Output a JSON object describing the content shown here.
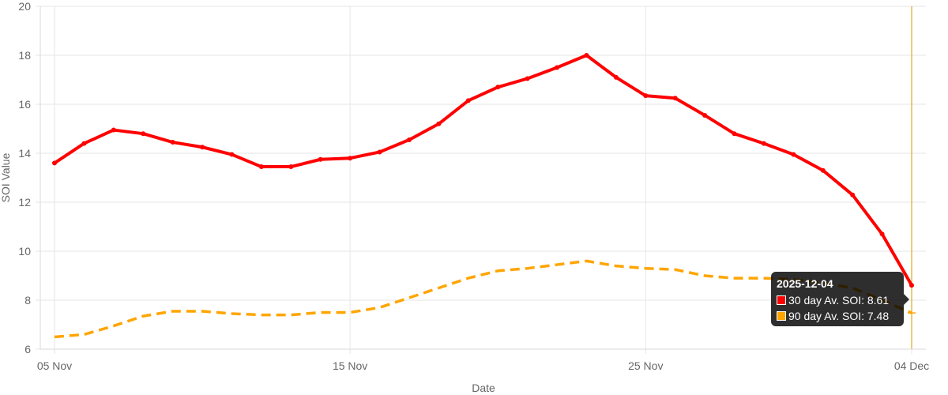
{
  "chart_data": {
    "type": "line",
    "xlabel": "Date",
    "ylabel": "SOI Value",
    "ylim": [
      6,
      20
    ],
    "yticks": [
      6,
      8,
      10,
      12,
      14,
      16,
      18,
      20
    ],
    "xticks": [
      {
        "label": "05 Nov",
        "index": 0
      },
      {
        "label": "15 Nov",
        "index": 10
      },
      {
        "label": "25 Nov",
        "index": 20
      },
      {
        "label": "04 Dec",
        "index": 29
      }
    ],
    "x": [
      "2025-11-05",
      "2025-11-06",
      "2025-11-07",
      "2025-11-08",
      "2025-11-09",
      "2025-11-10",
      "2025-11-11",
      "2025-11-12",
      "2025-11-13",
      "2025-11-14",
      "2025-11-15",
      "2025-11-16",
      "2025-11-17",
      "2025-11-18",
      "2025-11-19",
      "2025-11-20",
      "2025-11-21",
      "2025-11-22",
      "2025-11-23",
      "2025-11-24",
      "2025-11-25",
      "2025-11-26",
      "2025-11-27",
      "2025-11-28",
      "2025-11-29",
      "2025-11-30",
      "2025-12-01",
      "2025-12-02",
      "2025-12-03",
      "2025-12-04"
    ],
    "grid": true,
    "series": [
      {
        "name": "30 day Av. SOI",
        "color": "#ff0000",
        "style": "solid",
        "values": [
          13.6,
          14.4,
          14.95,
          14.8,
          14.45,
          14.25,
          13.95,
          13.45,
          13.45,
          13.75,
          13.8,
          14.05,
          14.55,
          15.2,
          16.15,
          16.7,
          17.05,
          17.5,
          18.0,
          17.1,
          16.35,
          16.25,
          15.55,
          14.8,
          14.4,
          13.95,
          13.3,
          12.3,
          10.7,
          8.61
        ]
      },
      {
        "name": "90 day Av. SOI",
        "color": "#ffa500",
        "style": "dashed",
        "values": [
          6.5,
          6.6,
          6.95,
          7.35,
          7.55,
          7.55,
          7.45,
          7.4,
          7.4,
          7.5,
          7.5,
          7.7,
          8.1,
          8.5,
          8.9,
          9.2,
          9.3,
          9.45,
          9.6,
          9.4,
          9.3,
          9.25,
          9.0,
          8.9,
          8.9,
          8.85,
          8.7,
          8.5,
          8.0,
          7.48
        ]
      }
    ],
    "tooltip": {
      "title": "2025-12-04",
      "rows": [
        {
          "label": "30 day Av. SOI: 8.61",
          "color": "#ff0000"
        },
        {
          "label": "90 day Av. SOI: 7.48",
          "color": "#ffa500"
        }
      ],
      "highlight_index": 29,
      "highlight_color": "#e8b84a"
    }
  }
}
